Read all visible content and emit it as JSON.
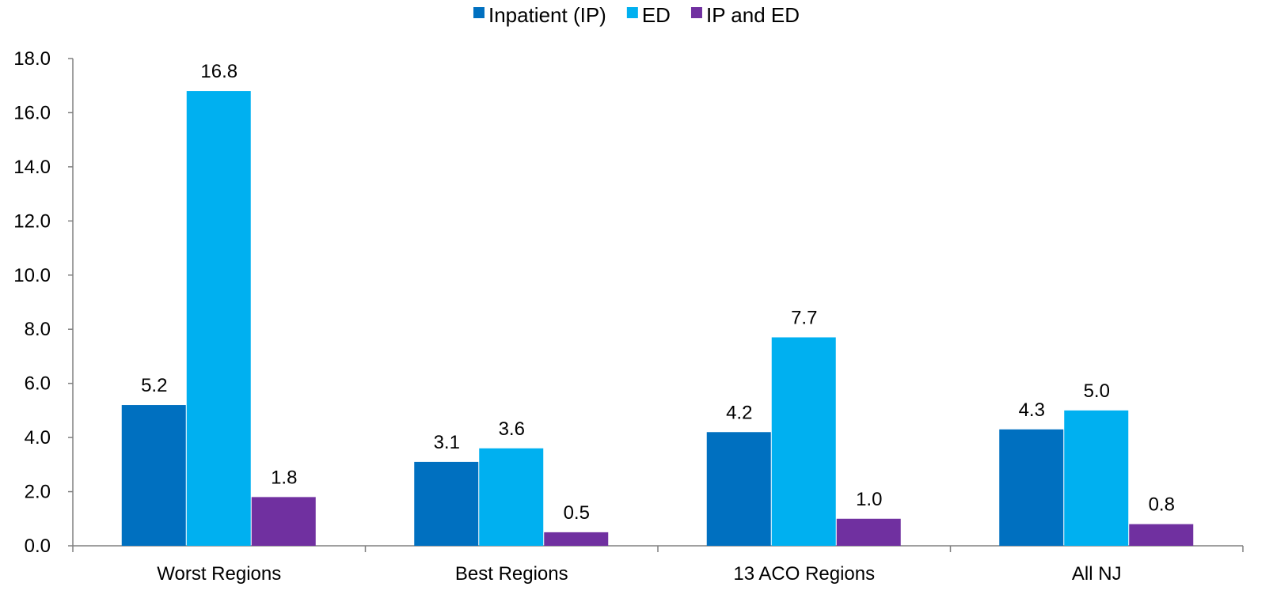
{
  "chart_data": {
    "type": "bar",
    "categories": [
      "Worst Regions",
      "Best Regions",
      "13 ACO Regions",
      "All NJ"
    ],
    "series": [
      {
        "name": "Inpatient (IP)",
        "color": "#0070C0",
        "values": [
          5.2,
          3.1,
          4.2,
          4.3
        ],
        "labels": [
          "5.2",
          "3.1",
          "4.2",
          "4.3"
        ]
      },
      {
        "name": "ED",
        "color": "#00B0F0",
        "values": [
          16.8,
          3.6,
          7.7,
          5.0
        ],
        "labels": [
          "16.8",
          "3.6",
          "7.7",
          "5.0"
        ]
      },
      {
        "name": "IP and ED",
        "color": "#7030A0",
        "values": [
          1.8,
          0.5,
          1.0,
          0.8
        ],
        "labels": [
          "1.8",
          "0.5",
          "1.0",
          "0.8"
        ]
      }
    ],
    "y_ticks": [
      "0.0",
      "2.0",
      "4.0",
      "6.0",
      "8.0",
      "10.0",
      "12.0",
      "14.0",
      "16.0",
      "18.0"
    ],
    "ylim": [
      0,
      18
    ],
    "grid": false,
    "legend_position": "top-center",
    "axis_color": "#808080"
  }
}
